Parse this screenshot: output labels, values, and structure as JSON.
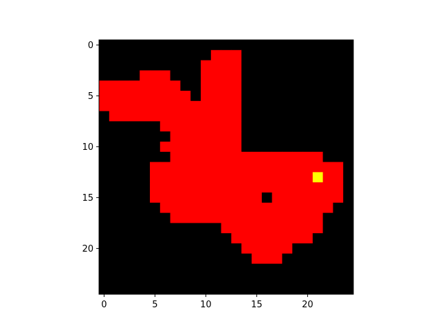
{
  "chart_data": {
    "type": "heatmap",
    "title": "",
    "xlabel": "",
    "ylabel": "",
    "grid": false,
    "xlim": [
      -0.5,
      24.5
    ],
    "ylim": [
      24.5,
      -0.5
    ],
    "x_ticks": [
      0,
      5,
      10,
      15,
      20
    ],
    "y_ticks": [
      0,
      5,
      10,
      15,
      20
    ],
    "x_tick_labels": [
      "0",
      "5",
      "10",
      "15",
      "20"
    ],
    "y_tick_labels": [
      "0",
      "5",
      "10",
      "15",
      "20"
    ],
    "colors": {
      "0": "#000000",
      "1": "#ff0000",
      "2": "#ffff00"
    },
    "grid_size": [
      25,
      25
    ],
    "rows": [
      "0000000000000000000000000",
      "0000000000011100000000000",
      "0000000000111100000000000",
      "0000111000111100000000000",
      "1111111100111100000000000",
      "1111111110111100000000000",
      "1111111111111100000000000",
      "0111111111111100000000000",
      "0000001111111100000000000",
      "0000000111111100000000000",
      "0000001111111100000000000",
      "0000000111111111111111000",
      "0000011111111111111111110",
      "0000011111111111111112110",
      "0000011111111111111111110",
      "0000011111111111011111110",
      "0000001111111111111111100",
      "0000000111111111111111000",
      "0000000000001111111111000",
      "0000000000000111111110000",
      "0000000000000011111000000",
      "0000000000000001110000000",
      "0000000000000000000000000",
      "0000000000000000000000000",
      "0000000000000000000000000"
    ]
  }
}
